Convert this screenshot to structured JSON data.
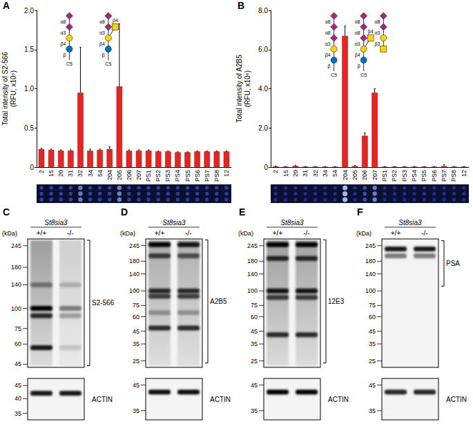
{
  "chart_data": [
    {
      "panel": "A",
      "type": "bar",
      "ylabel": "Total intensity of S2-566\n(RFU, x10⁵)",
      "categories": [
        "2",
        "15",
        "20",
        "31",
        "32",
        "34",
        "54",
        "204",
        "205",
        "206",
        "207",
        "PS1",
        "PS2",
        "PS3",
        "PS4",
        "PS5",
        "PS6",
        "PS7",
        "PS8",
        "12"
      ],
      "values": [
        0.23,
        0.22,
        0.21,
        0.21,
        0.95,
        0.21,
        0.22,
        0.23,
        1.03,
        0.21,
        0.21,
        0.21,
        0.2,
        0.2,
        0.19,
        0.19,
        0.2,
        0.2,
        0.2,
        0.2
      ],
      "errors": [
        0.01,
        0.01,
        0.01,
        0.01,
        0.58,
        0.02,
        0.01,
        0.03,
        0.8,
        0.01,
        0.01,
        0.01,
        0.005,
        0.005,
        0.005,
        0.005,
        0.005,
        0.005,
        0.005,
        0.005
      ],
      "color": "#e52521",
      "ylim": [
        0,
        2
      ],
      "yticks": [
        0,
        0.5,
        {
          "value": 1,
          "label": "1.0"
        },
        1.5,
        {
          "value": 2,
          "label": "2.0"
        }
      ],
      "grid": false,
      "glycans": [
        {
          "category": "32",
          "residues": [
            {
              "marker": "diamond",
              "color": "#a5287f"
            },
            {
              "marker": "diamond",
              "color": "#a5287f"
            },
            {
              "marker": "circle",
              "color": "#ffd400"
            },
            {
              "marker": "circle",
              "color": "#0072bc"
            }
          ],
          "linkages": [
            "α8",
            "α3",
            "β4",
            "β"
          ],
          "aglycone": "C5"
        },
        {
          "category": "205",
          "residues": [
            {
              "marker": "diamond",
              "color": "#a5287f"
            },
            {
              "marker": "diamond",
              "color": "#a5287f"
            },
            {
              "marker": "circle",
              "color": "#ffd400"
            },
            {
              "marker": "circle",
              "color": "#0072bc"
            }
          ],
          "linkages": [
            "α8",
            "α3",
            "β4",
            "β"
          ],
          "aglycone": "C5",
          "branch": {
            "at": 2,
            "residue": {
              "marker": "square",
              "color": "#ffd400"
            },
            "linkage": "β4"
          }
        }
      ]
    },
    {
      "panel": "B",
      "type": "bar",
      "ylabel": "Total intensity of A2B5\n(RFU, x10⁶)",
      "categories": [
        "2",
        "15",
        "20",
        "31",
        "32",
        "34",
        "54",
        "204",
        "205",
        "206",
        "207",
        "PS1",
        "PS2",
        "PS3",
        "PS4",
        "PS5",
        "PS6",
        "PS7",
        "PS8",
        "12"
      ],
      "values": [
        0.03,
        0.02,
        0.06,
        0.02,
        0.02,
        0.02,
        0.02,
        6.7,
        0.05,
        1.6,
        3.8,
        0.02,
        0.02,
        0.02,
        0.02,
        0.02,
        0.02,
        0.05,
        0.02,
        0.02
      ],
      "errors": [
        0.02,
        0.01,
        0.04,
        0.01,
        0.01,
        0.01,
        0.01,
        0.5,
        0.03,
        0.15,
        0.2,
        0.01,
        0.01,
        0.01,
        0.01,
        0.01,
        0.01,
        0.08,
        0.01,
        0.01
      ],
      "color": "#e52521",
      "ylim": [
        0,
        8
      ],
      "yticks": [
        0,
        {
          "value": 2,
          "label": "2.0"
        },
        {
          "value": 4,
          "label": "4.0"
        },
        {
          "value": 6,
          "label": "6.0"
        },
        {
          "value": 8,
          "label": "8.0"
        }
      ],
      "grid": false,
      "glycans": [
        {
          "category": "204",
          "residues": [
            {
              "marker": "diamond",
              "color": "#a5287f"
            },
            {
              "marker": "diamond",
              "color": "#a5287f"
            },
            {
              "marker": "diamond",
              "color": "#a5287f"
            },
            {
              "marker": "circle",
              "color": "#ffd400"
            },
            {
              "marker": "circle",
              "color": "#0072bc"
            }
          ],
          "linkages": [
            "α8",
            "α8",
            "α3",
            "β4",
            "β"
          ],
          "aglycone": "C5"
        },
        {
          "category": "207",
          "residues": [
            {
              "marker": "diamond",
              "color": "#a5287f"
            },
            {
              "marker": "diamond",
              "color": "#a5287f"
            },
            {
              "marker": "diamond",
              "color": "#a5287f"
            },
            {
              "marker": "circle",
              "color": "#ffd400"
            },
            {
              "marker": "circle",
              "color": "#0072bc"
            }
          ],
          "linkages": [
            "α8",
            "α8",
            "α3",
            "β4",
            "β"
          ],
          "aglycone": "C5",
          "branch": {
            "at": 3,
            "residue": {
              "marker": "square",
              "color": "#ffd400"
            },
            "linkage": "β4"
          }
        },
        {
          "category": "PS2",
          "residues": [
            {
              "marker": "diamond",
              "color": "#a5287f"
            },
            {
              "marker": "diamond",
              "color": "#a5287f"
            },
            {
              "marker": "circle",
              "color": "#ffd400"
            },
            {
              "marker": "square",
              "color": "#ffd400"
            }
          ],
          "linkages": [
            "α8",
            "α3",
            "β3"
          ]
        }
      ]
    }
  ],
  "blots": [
    {
      "panel": "C",
      "genotype": "St8sia3",
      "lanes": [
        "+/+",
        "-/-"
      ],
      "unit": "(kDa)",
      "label": "S2-566",
      "markers": [
        245,
        180,
        140,
        100,
        75,
        60,
        45
      ],
      "kda_range": [
        43,
        270
      ],
      "bracket_kda": [
        44,
        265
      ],
      "smear": [
        0.35,
        0.15
      ],
      "bands": [
        {
          "kda": 140,
          "intensity": [
            0.4,
            0.2
          ]
        },
        {
          "kda": 100,
          "intensity": [
            1,
            0.45
          ]
        },
        {
          "kda": 90,
          "intensity": [
            0.8,
            0.3
          ]
        },
        {
          "kda": 57,
          "intensity": [
            0.9,
            0.15
          ]
        }
      ],
      "loading": {
        "label": "ACTIN",
        "markers": [
          45,
          40,
          35
        ],
        "kda_range": [
          33,
          48
        ],
        "bands": [
          {
            "kda": 42,
            "intensity": [
              0.9,
              0.9
            ]
          }
        ]
      }
    },
    {
      "panel": "D",
      "genotype": "St8sia3",
      "lanes": [
        "+/+",
        "-/-"
      ],
      "unit": "(kDa)",
      "label": "A2B5",
      "markers": [
        245,
        180,
        140,
        100,
        75,
        60,
        45,
        35,
        25
      ],
      "kda_range": [
        22,
        280
      ],
      "bracket_kda": [
        24,
        275
      ],
      "smear": [
        0.3,
        0.28
      ],
      "bands": [
        {
          "kda": 250,
          "intensity": [
            1,
            0.9
          ]
        },
        {
          "kda": 200,
          "intensity": [
            0.7,
            0.6
          ]
        },
        {
          "kda": 100,
          "intensity": [
            0.8,
            0.8
          ]
        },
        {
          "kda": 90,
          "intensity": [
            0.7,
            0.7
          ]
        },
        {
          "kda": 48,
          "intensity": [
            0.8,
            0.8
          ]
        },
        {
          "kda": 65,
          "intensity": [
            0.3,
            0.3
          ]
        }
      ],
      "loading": {
        "label": "ACTIN",
        "markers": [
          45,
          35
        ],
        "kda_range": [
          32,
          48
        ],
        "bands": [
          {
            "kda": 42,
            "intensity": [
              0.95,
              0.95
            ]
          }
        ]
      }
    },
    {
      "panel": "E",
      "genotype": "St8sia3",
      "lanes": [
        "+/+",
        "-/-"
      ],
      "unit": "(kDa)",
      "label": "12E3",
      "markers": [
        245,
        180,
        140,
        100,
        75,
        60,
        45,
        35,
        25
      ],
      "kda_range": [
        22,
        280
      ],
      "bracket_kda": [
        24,
        275
      ],
      "smear": [
        0.35,
        0.33
      ],
      "bands": [
        {
          "kda": 250,
          "intensity": [
            1,
            1
          ]
        },
        {
          "kda": 190,
          "intensity": [
            0.8,
            0.8
          ]
        },
        {
          "kda": 100,
          "intensity": [
            0.9,
            0.9
          ]
        },
        {
          "kda": 88,
          "intensity": [
            0.7,
            0.7
          ]
        },
        {
          "kda": 42,
          "intensity": [
            0.8,
            0.8
          ]
        }
      ],
      "loading": {
        "label": "ACTIN",
        "markers": [
          45,
          35
        ],
        "kda_range": [
          32,
          48
        ],
        "bands": [
          {
            "kda": 42,
            "intensity": [
              1,
              1
            ]
          }
        ]
      }
    },
    {
      "panel": "F",
      "genotype": "St8sia3",
      "lanes": [
        "+/+",
        "-/-"
      ],
      "unit": "(kDa)",
      "label": "PSA",
      "markers": [
        245,
        180,
        140,
        100,
        75,
        60,
        45,
        35,
        25
      ],
      "kda_range": [
        22,
        280
      ],
      "bracket_kda": [
        110,
        270
      ],
      "smear": [
        0,
        0
      ],
      "bands": [
        {
          "kda": 230,
          "intensity": [
            0.9,
            0.9
          ]
        },
        {
          "kda": 200,
          "intensity": [
            0.5,
            0.5
          ]
        }
      ],
      "loading": {
        "label": "ACTIN",
        "markers": [
          45,
          35
        ],
        "kda_range": [
          32,
          48
        ],
        "bands": [
          {
            "kda": 42,
            "intensity": [
              0.85,
              0.85
            ]
          }
        ]
      }
    }
  ]
}
